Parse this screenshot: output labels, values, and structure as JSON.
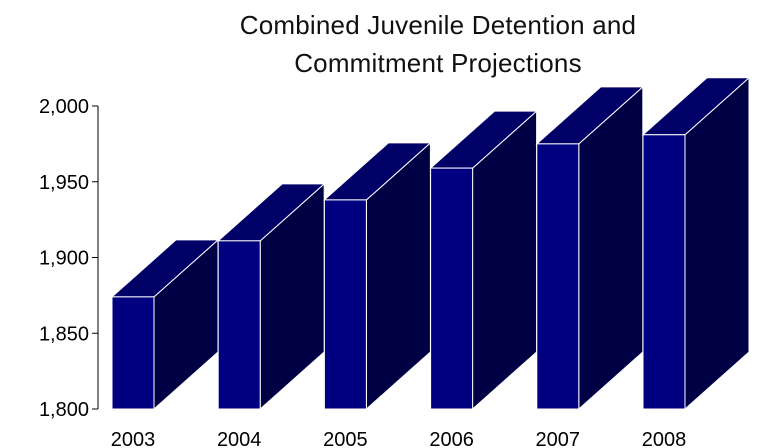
{
  "chart_data": {
    "type": "bar",
    "title": "Combined Juvenile Detention and Commitment Projections",
    "title_lines": [
      "Combined Juvenile Detention and",
      "Commitment Projections"
    ],
    "categories": [
      "2003",
      "2004",
      "2005",
      "2006",
      "2007",
      "2008"
    ],
    "values": [
      1874,
      1911,
      1938,
      1959,
      1975,
      1981
    ],
    "ylim": [
      1800,
      2000
    ],
    "yticks": [
      1800,
      1850,
      1900,
      1950,
      2000
    ],
    "ytick_labels": [
      "1,800",
      "1,850",
      "1,900",
      "1,950",
      "2,000"
    ],
    "xlabel": "",
    "ylabel": "",
    "grid": false,
    "style": "3d",
    "colors": {
      "front": "#000080",
      "top": "#000066",
      "side": "#000044",
      "edge": "#ffffff"
    }
  }
}
